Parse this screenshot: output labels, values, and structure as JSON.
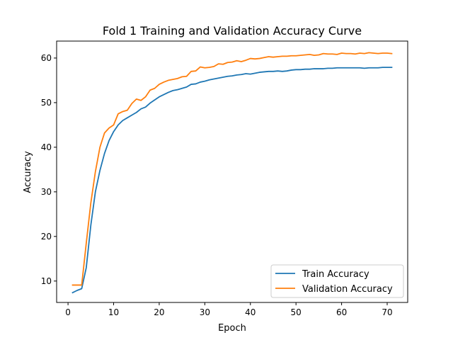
{
  "chart_data": {
    "type": "line",
    "title": "Fold 1 Training and Validation Accuracy Curve",
    "xlabel": "Epoch",
    "ylabel": "Accuracy",
    "xlim": [
      -2.5,
      74.5
    ],
    "ylim": [
      5.2,
      63.8
    ],
    "xticks": [
      0,
      10,
      20,
      30,
      40,
      50,
      60,
      70
    ],
    "yticks": [
      10,
      20,
      30,
      40,
      50,
      60
    ],
    "grid": false,
    "legend_position": "lower-right",
    "x": [
      1,
      2,
      3,
      4,
      5,
      6,
      7,
      8,
      9,
      10,
      11,
      12,
      13,
      14,
      15,
      16,
      17,
      18,
      19,
      20,
      21,
      22,
      23,
      24,
      25,
      26,
      27,
      28,
      29,
      30,
      31,
      32,
      33,
      34,
      35,
      36,
      37,
      38,
      39,
      40,
      41,
      42,
      43,
      44,
      45,
      46,
      47,
      48,
      49,
      50,
      51,
      52,
      53,
      54,
      55,
      56,
      57,
      58,
      59,
      60,
      61,
      62,
      63,
      64,
      65,
      66,
      67,
      68,
      69,
      70,
      71
    ],
    "series": [
      {
        "name": "Train Accuracy",
        "color": "#1f77b4",
        "values": [
          7.4,
          7.9,
          8.3,
          13.0,
          22.5,
          30.0,
          34.8,
          38.6,
          41.5,
          43.5,
          45.0,
          46.0,
          46.6,
          47.2,
          47.8,
          48.6,
          49.0,
          49.9,
          50.6,
          51.3,
          51.8,
          52.3,
          52.7,
          52.9,
          53.2,
          53.5,
          54.1,
          54.2,
          54.6,
          54.8,
          55.1,
          55.3,
          55.5,
          55.7,
          55.9,
          56.0,
          56.2,
          56.3,
          56.5,
          56.4,
          56.6,
          56.8,
          56.9,
          57.0,
          57.0,
          57.1,
          57.0,
          57.1,
          57.3,
          57.4,
          57.4,
          57.5,
          57.5,
          57.6,
          57.6,
          57.6,
          57.7,
          57.7,
          57.8,
          57.8,
          57.8,
          57.8,
          57.8,
          57.8,
          57.7,
          57.8,
          57.8,
          57.8,
          57.9,
          57.9,
          57.9
        ]
      },
      {
        "name": "Validation Accuracy",
        "color": "#ff7f0e",
        "values": [
          9.1,
          9.1,
          9.1,
          18.5,
          27.5,
          34.5,
          40.0,
          43.2,
          44.3,
          45.0,
          47.5,
          48.0,
          48.3,
          49.8,
          50.8,
          50.5,
          51.3,
          52.8,
          53.2,
          54.1,
          54.6,
          55.0,
          55.2,
          55.4,
          55.8,
          55.9,
          57.0,
          57.1,
          58.0,
          57.8,
          57.9,
          58.1,
          58.7,
          58.6,
          59.0,
          59.1,
          59.4,
          59.2,
          59.5,
          59.9,
          59.8,
          59.9,
          60.1,
          60.3,
          60.2,
          60.3,
          60.4,
          60.4,
          60.5,
          60.5,
          60.6,
          60.7,
          60.8,
          60.6,
          60.7,
          61.0,
          60.9,
          60.9,
          60.8,
          61.1,
          61.0,
          61.0,
          60.9,
          61.1,
          61.0,
          61.2,
          61.1,
          61.0,
          61.1,
          61.1,
          61.0
        ]
      }
    ]
  }
}
